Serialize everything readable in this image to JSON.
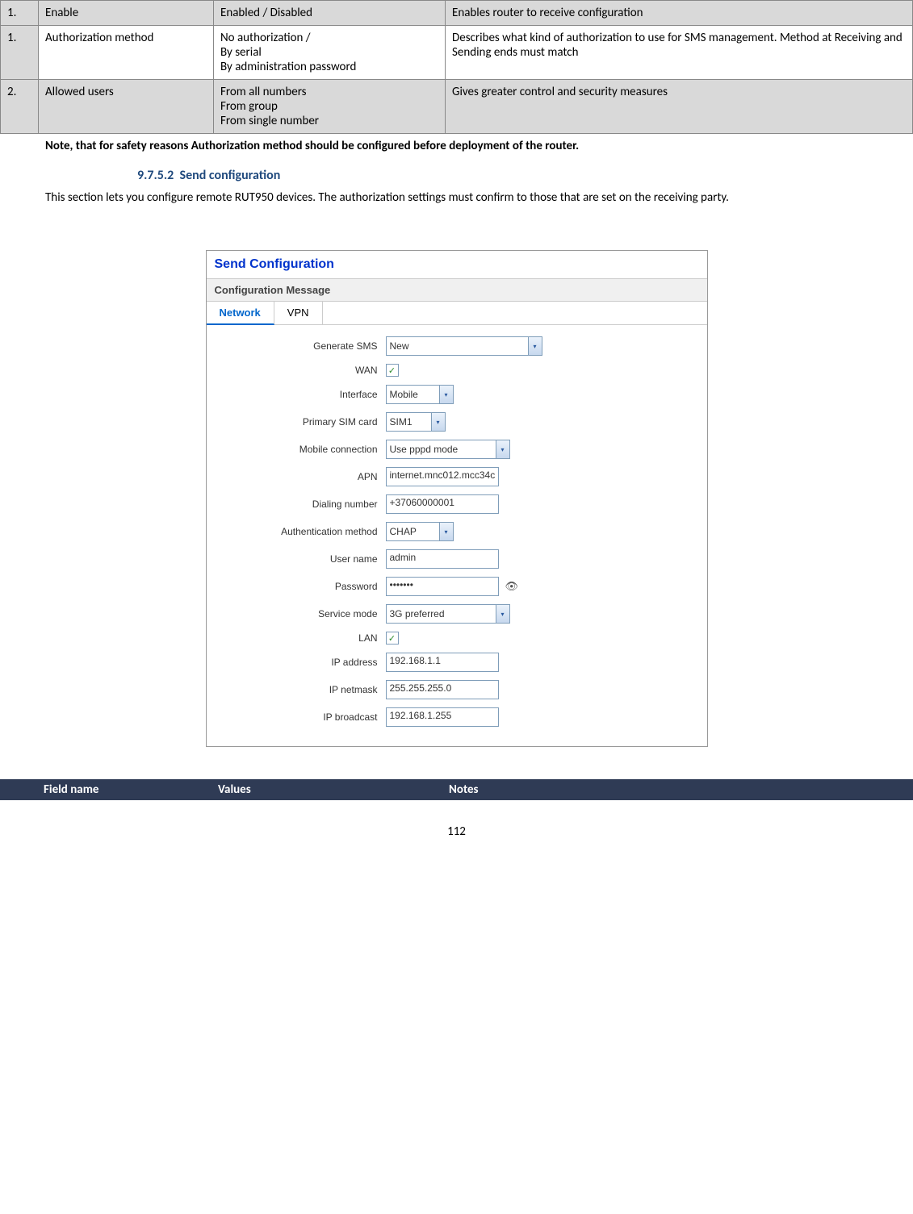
{
  "topTable": {
    "rows": [
      {
        "num": "1.",
        "field": "Enable",
        "values": "Enabled / Disabled",
        "notes": "Enables router to receive configuration",
        "shade": "gray"
      },
      {
        "num": "1.",
        "field": "Authorization method",
        "values": "No authorization /\nBy serial\nBy administration password",
        "notes": "Describes what kind of authorization to use for SMS management. Method at Receiving and Sending ends must match",
        "shade": "white"
      },
      {
        "num": "2.",
        "field": "Allowed users",
        "values": "From all numbers\nFrom group\nFrom single number",
        "notes": "Gives greater control and security measures",
        "shade": "gray"
      }
    ]
  },
  "note": "Note, that for safety reasons Authorization method should be configured before deployment of the router.",
  "section": {
    "number": "9.7.5.2",
    "title": "Send configuration"
  },
  "bodyText": "This section lets you configure remote RUT950 devices. The authorization settings must confirm to those that are set on the receiving party.",
  "panel": {
    "title": "Send Configuration",
    "subtitle": "Configuration Message",
    "tabs": [
      {
        "label": "Network",
        "active": true
      },
      {
        "label": "VPN",
        "active": false
      }
    ],
    "fields": {
      "generateSms": {
        "label": "Generate SMS",
        "value": "New",
        "type": "select",
        "width": "w-long"
      },
      "wan": {
        "label": "WAN",
        "checked": true,
        "type": "checkbox"
      },
      "interface": {
        "label": "Interface",
        "value": "Mobile",
        "type": "select",
        "width": "w-short"
      },
      "primarySim": {
        "label": "Primary SIM card",
        "value": "SIM1",
        "type": "select",
        "width": "w-shorter"
      },
      "mobileConn": {
        "label": "Mobile connection",
        "value": "Use pppd mode",
        "type": "select",
        "width": "w-mid"
      },
      "apn": {
        "label": "APN",
        "value": "internet.mnc012.mcc34c",
        "type": "text",
        "width": "w-mid"
      },
      "dialing": {
        "label": "Dialing number",
        "value": "+37060000001",
        "type": "text",
        "width": "w-mid"
      },
      "auth": {
        "label": "Authentication method",
        "value": "CHAP",
        "type": "select",
        "width": "w-short"
      },
      "username": {
        "label": "User name",
        "value": "admin",
        "type": "text",
        "width": "w-mid"
      },
      "password": {
        "label": "Password",
        "value": "•••••••",
        "type": "text",
        "width": "w-mid",
        "eye": true
      },
      "serviceMode": {
        "label": "Service mode",
        "value": "3G preferred",
        "type": "select",
        "width": "w-mid"
      },
      "lan": {
        "label": "LAN",
        "checked": true,
        "type": "checkbox"
      },
      "ipaddr": {
        "label": "IP address",
        "value": "192.168.1.1",
        "type": "text",
        "width": "w-mid"
      },
      "netmask": {
        "label": "IP netmask",
        "value": "255.255.255.0",
        "type": "text",
        "width": "w-mid"
      },
      "broadcast": {
        "label": "IP broadcast",
        "value": "192.168.1.255",
        "type": "text",
        "width": "w-mid"
      }
    },
    "fieldOrder": [
      "generateSms",
      "wan",
      "interface",
      "primarySim",
      "mobileConn",
      "apn",
      "dialing",
      "auth",
      "username",
      "password",
      "serviceMode",
      "lan",
      "ipaddr",
      "netmask",
      "broadcast"
    ]
  },
  "bottomHeader": {
    "col1": "",
    "col2": "Field name",
    "col3": "Values",
    "col4": "Notes"
  },
  "pageNumber": "112",
  "colors": {
    "headingBlue": "#1f497d",
    "panelTitleBlue": "#0033cc",
    "tabActive": "#0066cc",
    "tableHeaderBg": "#2f3b55",
    "grayRow": "#d9d9d9",
    "inputBorder": "#7f9db9"
  }
}
